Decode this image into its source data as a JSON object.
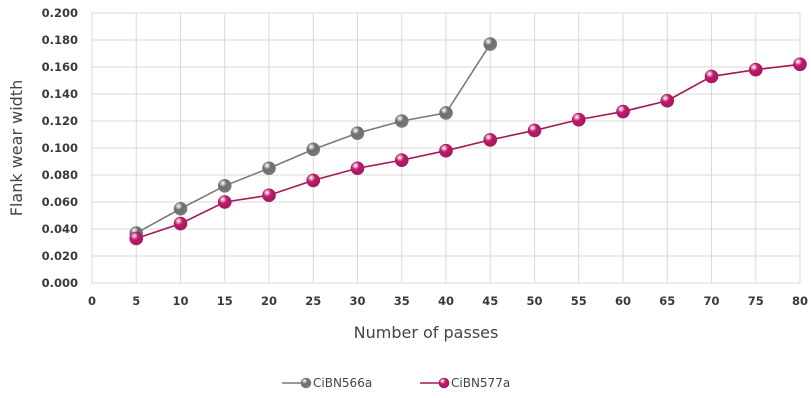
{
  "chart_data": {
    "type": "line",
    "title": "",
    "xlabel": "Number of passes",
    "ylabel": "Flank wear width",
    "x_ticks": [
      "0",
      "5",
      "10",
      "15",
      "20",
      "25",
      "30",
      "35",
      "40",
      "45",
      "50",
      "55",
      "60",
      "65",
      "70",
      "75",
      "80"
    ],
    "y_ticks": [
      "0.000",
      "0.020",
      "0.040",
      "0.060",
      "0.080",
      "0.100",
      "0.120",
      "0.140",
      "0.160",
      "0.180",
      "0.200"
    ],
    "xlim": [
      0,
      80
    ],
    "ylim": [
      0,
      0.2
    ],
    "grid": true,
    "legend_position": "bottom",
    "series": [
      {
        "name": "CiBN566a",
        "color": "#7a7a7a",
        "marker_color": "#6b6e6d",
        "x": [
          5,
          10,
          15,
          20,
          25,
          30,
          35,
          40,
          45
        ],
        "y": [
          0.037,
          0.055,
          0.072,
          0.085,
          0.099,
          0.111,
          0.12,
          0.126,
          0.177
        ]
      },
      {
        "name": "CiBN577a",
        "color": "#a3185a",
        "marker_color": "#c01a6e",
        "x": [
          5,
          10,
          15,
          20,
          25,
          30,
          35,
          40,
          45,
          50,
          55,
          60,
          65,
          70,
          75,
          80
        ],
        "y": [
          0.033,
          0.044,
          0.06,
          0.065,
          0.076,
          0.085,
          0.091,
          0.098,
          0.106,
          0.113,
          0.121,
          0.127,
          0.135,
          0.153,
          0.158,
          0.162
        ]
      }
    ]
  }
}
